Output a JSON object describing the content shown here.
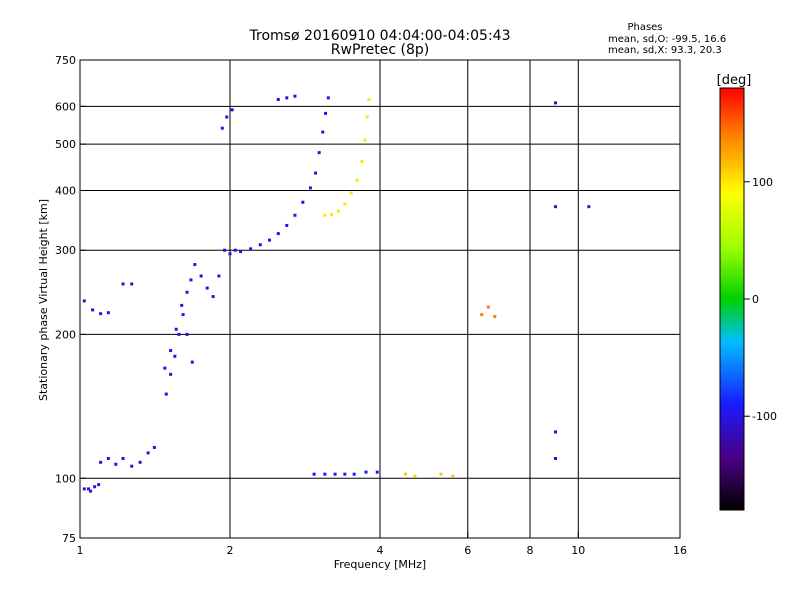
{
  "chart_data": {
    "type": "scatter",
    "title": "Tromsø 20160910 04:04:00-04:05:43",
    "subtitle": "RwPretec (8p)",
    "xlabel": "Frequency [MHz]",
    "ylabel": "Stationary phase Virtual Height [km]",
    "x_scale": "log",
    "y_scale": "log",
    "xlim": [
      1,
      16
    ],
    "ylim": [
      75,
      750
    ],
    "x_ticks": [
      1,
      2,
      4,
      6,
      8,
      10,
      16
    ],
    "x_tick_labels": [
      "1",
      "2",
      "4",
      "6",
      "8",
      "10",
      "16"
    ],
    "y_ticks": [
      75,
      100,
      200,
      300,
      400,
      500,
      600,
      750
    ],
    "y_tick_labels": [
      "75",
      "100",
      "200",
      "300",
      "400",
      "500",
      "600",
      "750"
    ],
    "grid": true,
    "legend": {
      "title": "Phases",
      "entries": [
        "mean, sd,O: -99.5, 16.6",
        "mean, sd,X:  93.3, 20.3"
      ]
    },
    "colorbar": {
      "label": "[deg]",
      "range": [
        -180,
        180
      ],
      "ticks": [
        -100,
        0,
        100
      ],
      "tick_labels": [
        "-100",
        "0",
        "100"
      ]
    },
    "traces": [
      {
        "phase": -100,
        "points": [
          [
            1.02,
            95
          ],
          [
            1.04,
            95
          ],
          [
            1.05,
            94
          ],
          [
            1.07,
            96
          ],
          [
            1.09,
            97
          ]
        ]
      },
      {
        "phase": -100,
        "points": [
          [
            1.1,
            108
          ],
          [
            1.14,
            110
          ],
          [
            1.18,
            107
          ],
          [
            1.22,
            110
          ],
          [
            1.27,
            106
          ],
          [
            1.32,
            108
          ],
          [
            1.37,
            113
          ],
          [
            1.41,
            116
          ]
        ]
      },
      {
        "phase": -100,
        "points": [
          [
            1.02,
            235
          ],
          [
            1.06,
            225
          ],
          [
            1.1,
            221
          ],
          [
            1.14,
            222
          ]
        ]
      },
      {
        "phase": -100,
        "points": [
          [
            1.22,
            255
          ],
          [
            1.27,
            255
          ]
        ]
      },
      {
        "phase": -100,
        "points": [
          [
            1.49,
            150
          ],
          [
            1.52,
            165
          ],
          [
            1.55,
            180
          ],
          [
            1.58,
            200
          ],
          [
            1.61,
            220
          ],
          [
            1.64,
            245
          ],
          [
            1.67,
            260
          ],
          [
            1.7,
            280
          ],
          [
            1.75,
            265
          ],
          [
            1.8,
            250
          ],
          [
            1.85,
            240
          ],
          [
            1.9,
            265
          ],
          [
            1.95,
            300
          ],
          [
            2.0,
            295
          ],
          [
            2.05,
            300
          ],
          [
            2.1,
            298
          ],
          [
            2.2,
            302
          ],
          [
            2.3,
            308
          ],
          [
            2.4,
            315
          ],
          [
            2.5,
            325
          ],
          [
            2.6,
            338
          ],
          [
            2.7,
            355
          ],
          [
            2.8,
            378
          ],
          [
            2.9,
            405
          ],
          [
            2.97,
            435
          ],
          [
            3.02,
            480
          ],
          [
            3.07,
            530
          ],
          [
            3.11,
            580
          ],
          [
            3.15,
            625
          ]
        ]
      },
      {
        "phase": -100,
        "points": [
          [
            1.48,
            170
          ],
          [
            1.52,
            185
          ],
          [
            1.56,
            205
          ],
          [
            1.6,
            230
          ],
          [
            1.64,
            200
          ],
          [
            1.68,
            175
          ]
        ]
      },
      {
        "phase": -100,
        "points": [
          [
            1.93,
            540
          ],
          [
            1.97,
            570
          ],
          [
            2.02,
            590
          ]
        ]
      },
      {
        "phase": -100,
        "points": [
          [
            2.5,
            620
          ],
          [
            2.6,
            625
          ],
          [
            2.7,
            630
          ]
        ]
      },
      {
        "phase": 100,
        "points": [
          [
            3.1,
            355
          ],
          [
            3.2,
            356
          ],
          [
            3.3,
            362
          ],
          [
            3.4,
            375
          ],
          [
            3.5,
            395
          ],
          [
            3.6,
            420
          ],
          [
            3.68,
            460
          ],
          [
            3.73,
            510
          ],
          [
            3.77,
            570
          ],
          [
            3.8,
            620
          ]
        ]
      },
      {
        "phase": -90,
        "points": [
          [
            2.95,
            102
          ],
          [
            3.1,
            102
          ],
          [
            3.25,
            102
          ],
          [
            3.4,
            102
          ],
          [
            3.55,
            102
          ],
          [
            3.75,
            103
          ],
          [
            3.95,
            103
          ]
        ]
      },
      {
        "phase": 110,
        "points": [
          [
            4.5,
            102
          ],
          [
            4.7,
            101
          ],
          [
            5.3,
            102
          ],
          [
            5.6,
            101
          ]
        ]
      },
      {
        "phase": 140,
        "points": [
          [
            6.4,
            220
          ],
          [
            6.6,
            228
          ],
          [
            6.8,
            218
          ]
        ]
      },
      {
        "phase": -110,
        "points": [
          [
            9.0,
            610
          ],
          [
            9.0,
            125
          ],
          [
            9.0,
            110
          ],
          [
            10.5,
            370
          ],
          [
            9.0,
            370
          ]
        ]
      }
    ]
  }
}
